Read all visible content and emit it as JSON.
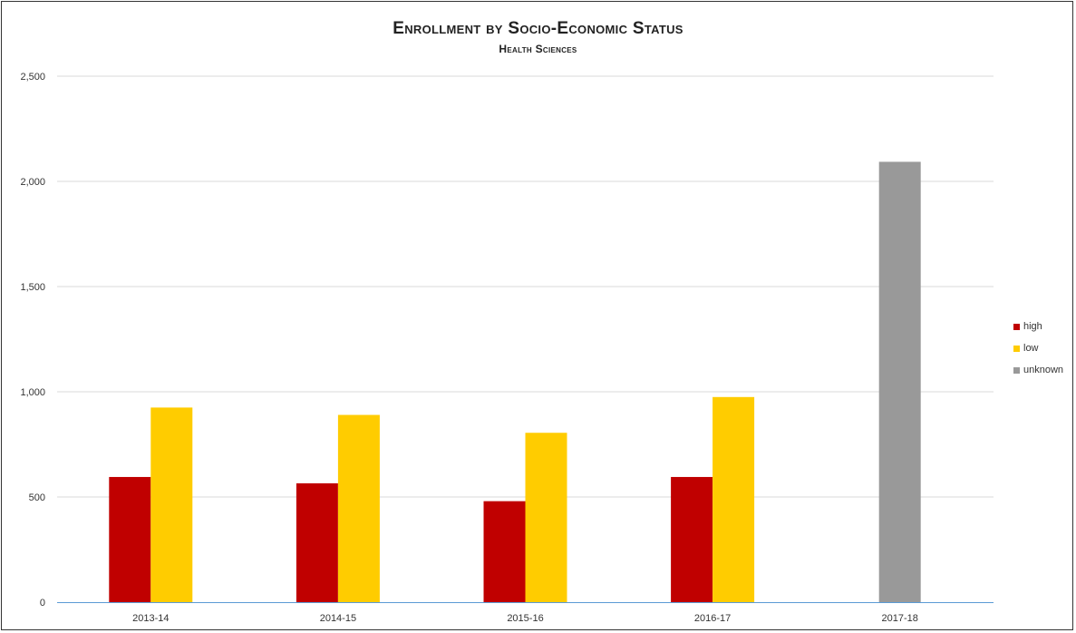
{
  "chart_data": {
    "type": "bar",
    "title": "Enrollment by Socio-Economic Status",
    "subtitle": "Health Sciences",
    "categories": [
      "2013-14",
      "2014-15",
      "2015-16",
      "2016-17",
      "2017-18"
    ],
    "series": [
      {
        "name": "high",
        "color": "#c00000",
        "values": [
          595,
          565,
          480,
          595,
          null
        ]
      },
      {
        "name": "low",
        "color": "#ffcc00",
        "values": [
          925,
          890,
          805,
          975,
          null
        ]
      },
      {
        "name": "unknown",
        "color": "#999999",
        "values": [
          null,
          null,
          null,
          null,
          2093
        ]
      }
    ],
    "yticks": [
      "0",
      "500",
      "1,000",
      "1,500",
      "2,000",
      "2,500"
    ],
    "ytick_values": [
      0,
      500,
      1000,
      1500,
      2000,
      2500
    ],
    "ylim": [
      0,
      2500
    ],
    "xlabel": "",
    "ylabel": "",
    "grid": true,
    "legend_position": "right"
  }
}
